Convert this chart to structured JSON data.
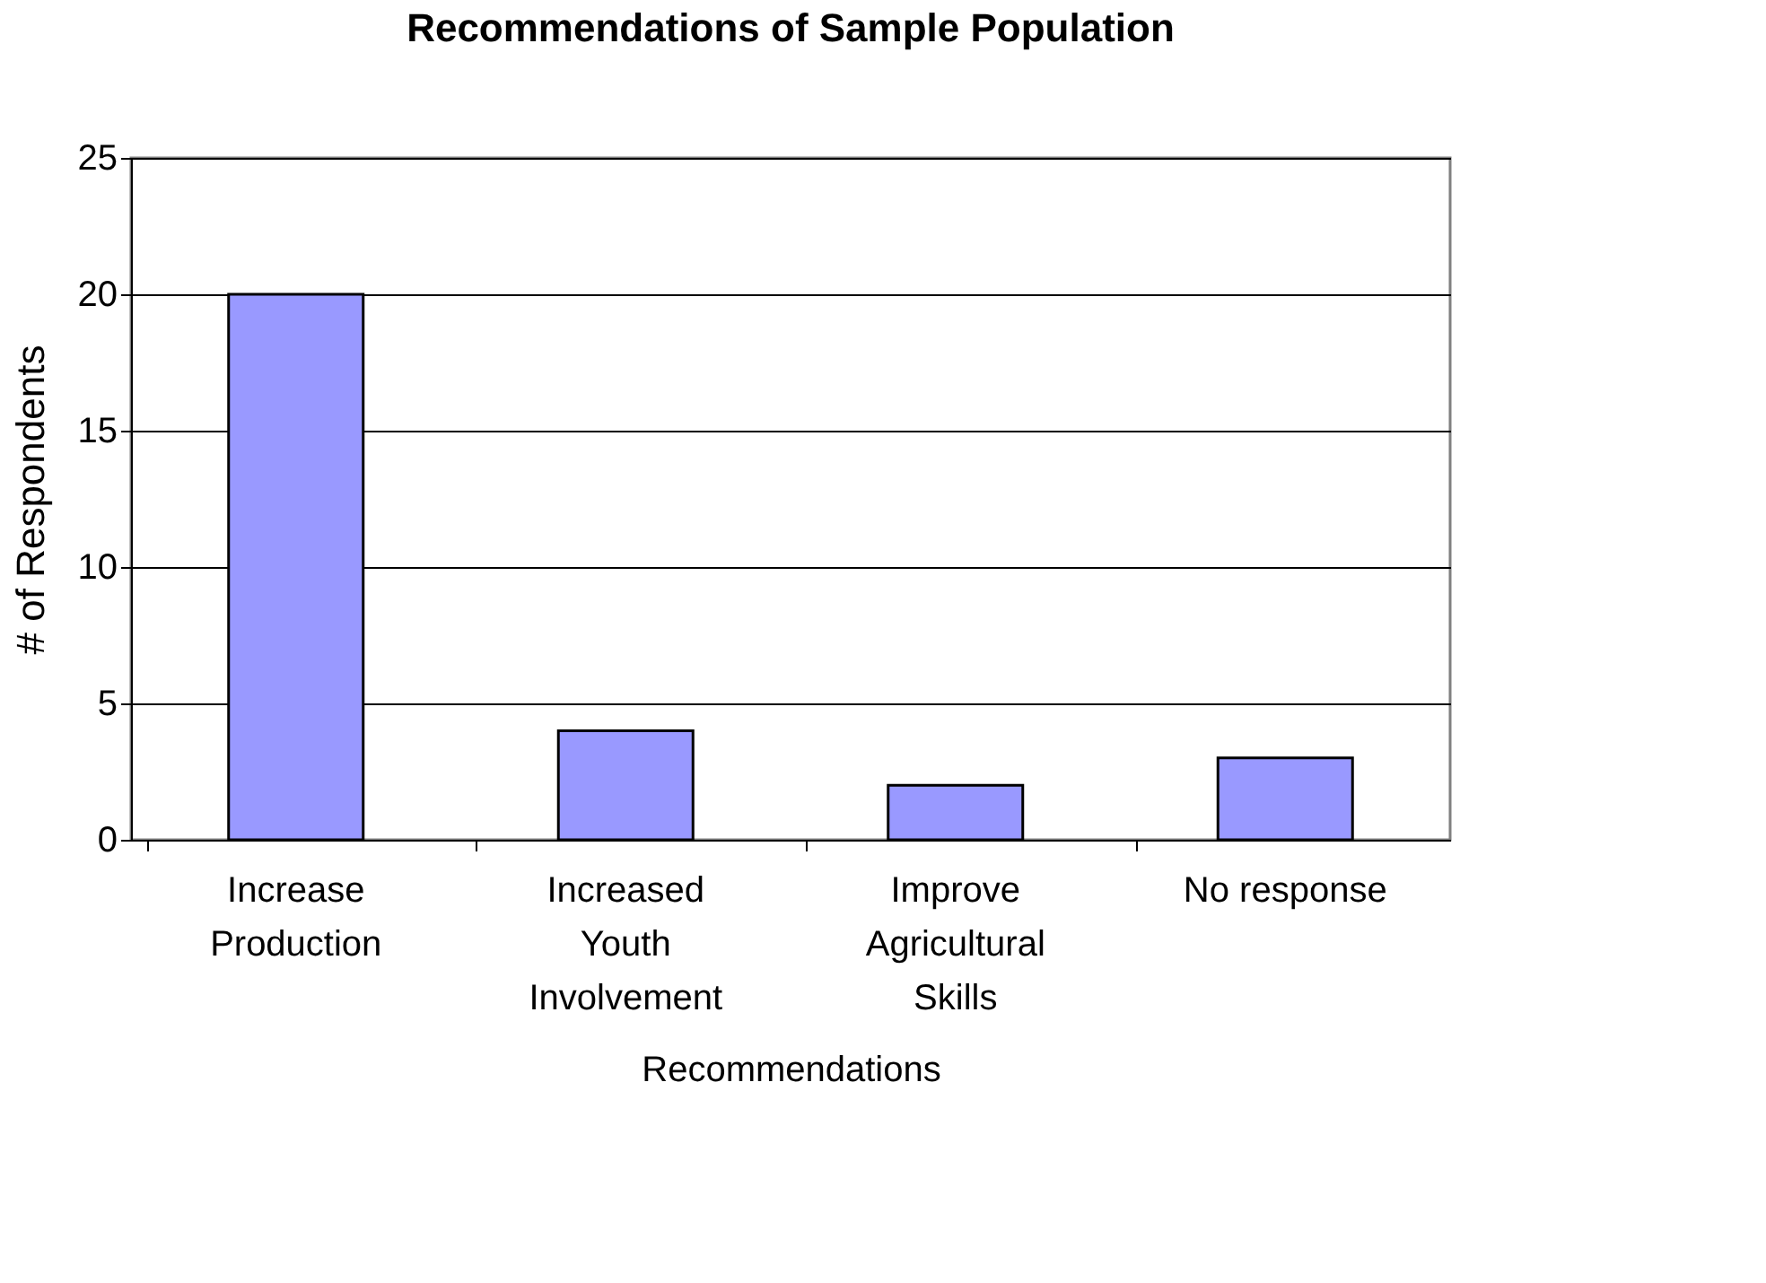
{
  "chart_data": {
    "type": "bar",
    "title": "Recommendations of Sample Population",
    "xlabel": "Recommendations",
    "ylabel": "# of Respondents",
    "categories": [
      "Increase Production",
      "Increased Youth Involvement",
      "Improve Agricultural Skills",
      "No response"
    ],
    "values": [
      20,
      4,
      2,
      3
    ],
    "color": "#9999ff",
    "ylim": [
      0,
      25
    ],
    "yticks": [
      0,
      5,
      10,
      15,
      20,
      25
    ],
    "grid": "y"
  }
}
